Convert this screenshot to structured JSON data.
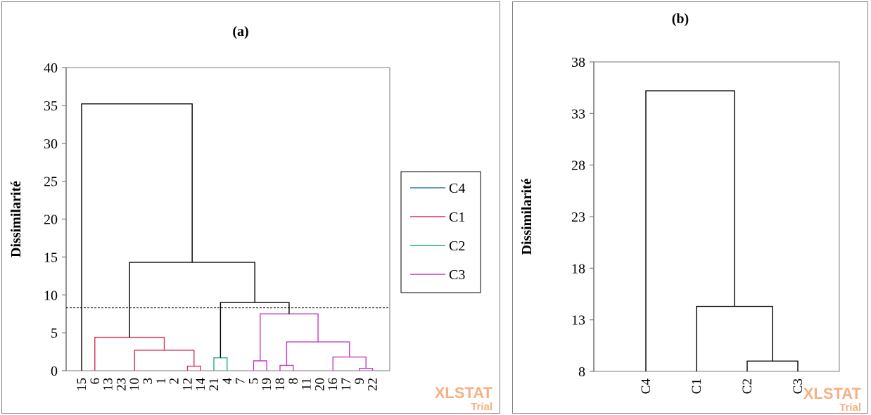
{
  "watermark": {
    "brand": "XLSTAT",
    "edition": "Trial"
  },
  "chart_data": [
    {
      "type": "dendrogram",
      "title": "(a)",
      "ylabel": "Dissimilarité",
      "ylim": [
        0,
        40
      ],
      "yticks": [
        0,
        5,
        10,
        15,
        20,
        25,
        30,
        35,
        40
      ],
      "truncation_level": 8.3,
      "leaves": [
        "15",
        "6",
        "13",
        "23",
        "10",
        "3",
        "1",
        "2",
        "12",
        "14",
        "21",
        "4",
        "7",
        "5",
        "19",
        "18",
        "8",
        "11",
        "20",
        "16",
        "17",
        "9",
        "22"
      ],
      "legend": [
        {
          "name": "C4",
          "color": "#2e75b6"
        },
        {
          "name": "C1",
          "color": "#d6345a"
        },
        {
          "name": "C2",
          "color": "#27ae85"
        },
        {
          "name": "C3",
          "color": "#c33cc3"
        }
      ],
      "merges": [
        {
          "left": [
            8
          ],
          "right": [
            9
          ],
          "height": 0.6,
          "cluster": "C1"
        },
        {
          "left": [
            4
          ],
          "right": [
            8,
            9
          ],
          "height": 2.7,
          "cluster": "C1"
        },
        {
          "left": [
            1
          ],
          "right": [
            4,
            8,
            9
          ],
          "height": 4.4,
          "cluster": "C1"
        },
        {
          "left": [
            10
          ],
          "right": [
            11
          ],
          "height": 1.7,
          "cluster": "C2"
        },
        {
          "left": [
            13
          ],
          "right": [
            14
          ],
          "height": 1.3,
          "cluster": "C3"
        },
        {
          "left": [
            15
          ],
          "right": [
            16
          ],
          "height": 0.7,
          "cluster": "C3"
        },
        {
          "left": [
            21
          ],
          "right": [
            22
          ],
          "height": 0.3,
          "cluster": "C3"
        },
        {
          "left": [
            19
          ],
          "right": [
            21,
            22
          ],
          "height": 1.8,
          "cluster": "C3"
        },
        {
          "left": [
            15,
            16
          ],
          "right": [
            19,
            21,
            22
          ],
          "height": 3.8,
          "cluster": "C3"
        },
        {
          "left": [
            13,
            14
          ],
          "right": [
            15,
            16,
            19,
            21,
            22
          ],
          "height": 7.5,
          "cluster": "C3"
        },
        {
          "left": [
            10,
            11
          ],
          "right": [
            13,
            14,
            15,
            16,
            19,
            21,
            22
          ],
          "height": 9.0,
          "cluster": "top"
        },
        {
          "left": [
            1,
            4,
            8,
            9
          ],
          "right": [
            10,
            11,
            13,
            14,
            15,
            16,
            19,
            21,
            22
          ],
          "height": 14.3,
          "cluster": "top"
        },
        {
          "left": [
            0
          ],
          "right": [
            1,
            4,
            8,
            9,
            10,
            11,
            13,
            14,
            15,
            16,
            19,
            21,
            22
          ],
          "height": 35.2,
          "cluster": "top"
        }
      ]
    },
    {
      "type": "dendrogram",
      "title": "(b)",
      "ylabel": "Dissimilarité",
      "ylim": [
        8,
        38
      ],
      "yticks": [
        8,
        13,
        18,
        23,
        28,
        33,
        38
      ],
      "leaves": [
        "C4",
        "C1",
        "C2",
        "C3"
      ],
      "merges": [
        {
          "left": [
            2
          ],
          "right": [
            3
          ],
          "height": 9.0
        },
        {
          "left": [
            1
          ],
          "right": [
            2,
            3
          ],
          "height": 14.3
        },
        {
          "left": [
            0
          ],
          "right": [
            1,
            2,
            3
          ],
          "height": 35.2
        }
      ]
    }
  ]
}
